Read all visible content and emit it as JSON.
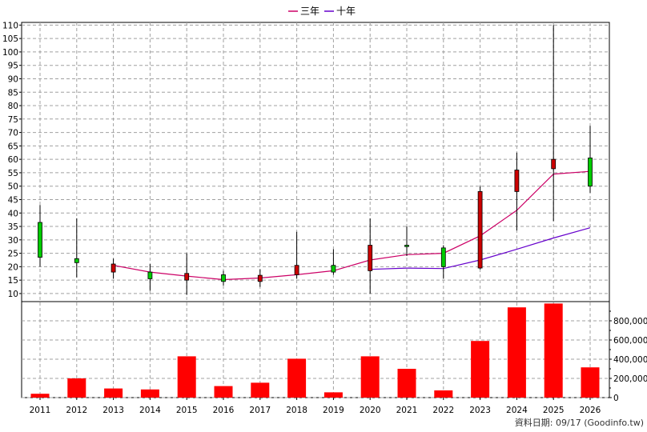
{
  "legend": {
    "items": [
      {
        "label": "三年",
        "color": "#cc0066"
      },
      {
        "label": "十年",
        "color": "#6600cc"
      }
    ]
  },
  "source": "資料日期: 09/17 (Goodinfo.tw)",
  "chart_data": {
    "type": "candlestick",
    "categories": [
      "2011",
      "2012",
      "2013",
      "2014",
      "2015",
      "2016",
      "2017",
      "2018",
      "2019",
      "2020",
      "2021",
      "2022",
      "2023",
      "2024",
      "2025",
      "2026"
    ],
    "price_axis": {
      "ticks": [
        10,
        15,
        20,
        25,
        30,
        35,
        40,
        45,
        50,
        55,
        60,
        65,
        70,
        75,
        80,
        85,
        90,
        95,
        100,
        105,
        110
      ],
      "range": [
        7,
        111
      ]
    },
    "volume_axis": {
      "ticks": [
        0,
        200000,
        400000,
        600000,
        800000
      ],
      "tick_labels": [
        "0",
        "200,000",
        "400,000",
        "600,000",
        "800,000"
      ],
      "range": [
        0,
        1000000
      ]
    },
    "candles": [
      {
        "year": "2011",
        "open": 23.5,
        "close": 36.5,
        "high": 43,
        "low": 20
      },
      {
        "year": "2012",
        "open": 21.5,
        "close": 23,
        "high": 38,
        "low": 16
      },
      {
        "year": "2013",
        "open": 21,
        "close": 18,
        "high": 23,
        "low": 15.5
      },
      {
        "year": "2014",
        "open": 15.5,
        "close": 18,
        "high": 21,
        "low": 11
      },
      {
        "year": "2015",
        "open": 17.5,
        "close": 15,
        "high": 25,
        "low": 9.5
      },
      {
        "year": "2016",
        "open": 14.5,
        "close": 17,
        "high": 18.5,
        "low": 13
      },
      {
        "year": "2017",
        "open": 16.8,
        "close": 14.5,
        "high": 19,
        "low": 12.5
      },
      {
        "year": "2018",
        "open": 20.5,
        "close": 17,
        "high": 33,
        "low": 15.5
      },
      {
        "year": "2019",
        "open": 18,
        "close": 20.5,
        "high": 26.5,
        "low": 17
      },
      {
        "year": "2020",
        "open": 28,
        "close": 18.5,
        "high": 38,
        "low": 10
      },
      {
        "year": "2021",
        "open": 27.5,
        "close": 28,
        "high": 35,
        "low": 24
      },
      {
        "year": "2022",
        "open": 20,
        "close": 27,
        "high": 28,
        "low": 15.5
      },
      {
        "year": "2023",
        "open": 48,
        "close": 19.5,
        "high": 50,
        "low": 19
      },
      {
        "year": "2024",
        "open": 56,
        "close": 48,
        "high": 62.5,
        "low": 33.5
      },
      {
        "year": "2025",
        "open": 60,
        "close": 56.5,
        "high": 110,
        "low": 37
      },
      {
        "year": "2026",
        "open": 50,
        "close": 60.5,
        "high": 72.5,
        "low": 47.5
      }
    ],
    "series": [
      {
        "name": "三年",
        "color": "#cc0066",
        "values": [
          null,
          null,
          20.5,
          18,
          16.5,
          15.2,
          15.8,
          17,
          18.5,
          22.5,
          24.5,
          25,
          31.5,
          41,
          54.5,
          55.5
        ]
      },
      {
        "name": "十年",
        "color": "#6600cc",
        "values": [
          null,
          null,
          null,
          null,
          null,
          null,
          null,
          null,
          null,
          19,
          19.5,
          19.3,
          22.5,
          26.5,
          30.7,
          34.5
        ]
      }
    ],
    "volume": [
      40000,
      200000,
      95000,
      85000,
      430000,
      120000,
      155000,
      405000,
      55000,
      430000,
      300000,
      75000,
      590000,
      940000,
      980000,
      315000
    ],
    "volume_color": "#ff0000",
    "up_color": "#00cc00",
    "down_color": "#cc0000"
  }
}
